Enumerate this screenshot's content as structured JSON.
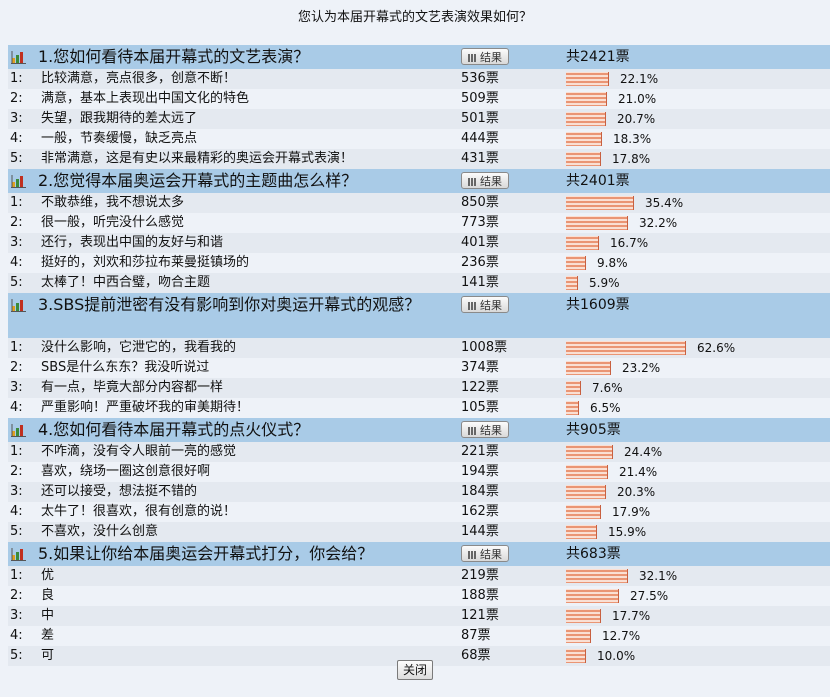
{
  "page_title": "您认为本届开幕式的文艺表演效果如何？",
  "result_label": "结果",
  "close_label": "关闭",
  "questions": [
    {
      "title": "1.您如何看待本届开幕式的文艺表演？",
      "total": "共2421票",
      "options": [
        {
          "num": "1:",
          "text": "比较满意，亮点很多，创意不断！",
          "votes": "536票",
          "pct_text": "22.1%",
          "pct": 22.1
        },
        {
          "num": "2:",
          "text": "满意，基本上表现出中国文化的特色",
          "votes": "509票",
          "pct_text": "21.0%",
          "pct": 21.0
        },
        {
          "num": "3:",
          "text": "失望，跟我期待的差太远了",
          "votes": "501票",
          "pct_text": "20.7%",
          "pct": 20.7
        },
        {
          "num": "4:",
          "text": "一般，节奏缓慢，缺乏亮点",
          "votes": "444票",
          "pct_text": "18.3%",
          "pct": 18.3
        },
        {
          "num": "5:",
          "text": "非常满意，这是有史以来最精彩的奥运会开幕式表演！",
          "votes": "431票",
          "pct_text": "17.8%",
          "pct": 17.8
        }
      ]
    },
    {
      "title": "2.您觉得本届奥运会开幕式的主题曲怎么样？",
      "total": "共2401票",
      "options": [
        {
          "num": "1:",
          "text": "不敢恭维，我不想说太多",
          "votes": "850票",
          "pct_text": "35.4%",
          "pct": 35.4
        },
        {
          "num": "2:",
          "text": "很一般，听完没什么感觉",
          "votes": "773票",
          "pct_text": "32.2%",
          "pct": 32.2
        },
        {
          "num": "3:",
          "text": "还行，表现出中国的友好与和谐",
          "votes": "401票",
          "pct_text": "16.7%",
          "pct": 16.7
        },
        {
          "num": "4:",
          "text": "挺好的，刘欢和莎拉布莱曼挺镇场的",
          "votes": "236票",
          "pct_text": "9.8%",
          "pct": 9.8
        },
        {
          "num": "5:",
          "text": "太棒了！中西合璧，吻合主题",
          "votes": "141票",
          "pct_text": "5.9%",
          "pct": 5.9
        }
      ]
    },
    {
      "title": "3.SBS提前泄密有没有影响到你对奥运开幕式的观感？",
      "total": "共1609票",
      "options": [
        {
          "num": "1:",
          "text": "没什么影响，它泄它的，我看我的",
          "votes": "1008票",
          "pct_text": "62.6%",
          "pct": 62.6
        },
        {
          "num": "2:",
          "text": "SBS是什么东东？我没听说过",
          "votes": "374票",
          "pct_text": "23.2%",
          "pct": 23.2
        },
        {
          "num": "3:",
          "text": "有一点，毕竟大部分内容都一样",
          "votes": "122票",
          "pct_text": "7.6%",
          "pct": 7.6
        },
        {
          "num": "4:",
          "text": "严重影响！严重破坏我的审美期待！",
          "votes": "105票",
          "pct_text": "6.5%",
          "pct": 6.5
        }
      ]
    },
    {
      "title": "4.您如何看待本届开幕式的点火仪式？",
      "total": "共905票",
      "options": [
        {
          "num": "1:",
          "text": "不咋滴，没有令人眼前一亮的感觉",
          "votes": "221票",
          "pct_text": "24.4%",
          "pct": 24.4
        },
        {
          "num": "2:",
          "text": "喜欢，绕场一圈这创意很好啊",
          "votes": "194票",
          "pct_text": "21.4%",
          "pct": 21.4
        },
        {
          "num": "3:",
          "text": "还可以接受，想法挺不错的",
          "votes": "184票",
          "pct_text": "20.3%",
          "pct": 20.3
        },
        {
          "num": "4:",
          "text": "太牛了！很喜欢，很有创意的说！",
          "votes": "162票",
          "pct_text": "17.9%",
          "pct": 17.9
        },
        {
          "num": "5:",
          "text": "不喜欢，没什么创意",
          "votes": "144票",
          "pct_text": "15.9%",
          "pct": 15.9
        }
      ]
    },
    {
      "title": "5.如果让你给本届奥运会开幕式打分，你会给？",
      "total": "共683票",
      "options": [
        {
          "num": "1:",
          "text": "优",
          "votes": "219票",
          "pct_text": "32.1%",
          "pct": 32.1
        },
        {
          "num": "2:",
          "text": "良",
          "votes": "188票",
          "pct_text": "27.5%",
          "pct": 27.5
        },
        {
          "num": "3:",
          "text": "中",
          "votes": "121票",
          "pct_text": "17.7%",
          "pct": 17.7
        },
        {
          "num": "4:",
          "text": "差",
          "votes": "87票",
          "pct_text": "12.7%",
          "pct": 12.7
        },
        {
          "num": "5:",
          "text": "可",
          "votes": "68票",
          "pct_text": "10.0%",
          "pct": 10.0
        }
      ]
    }
  ]
}
